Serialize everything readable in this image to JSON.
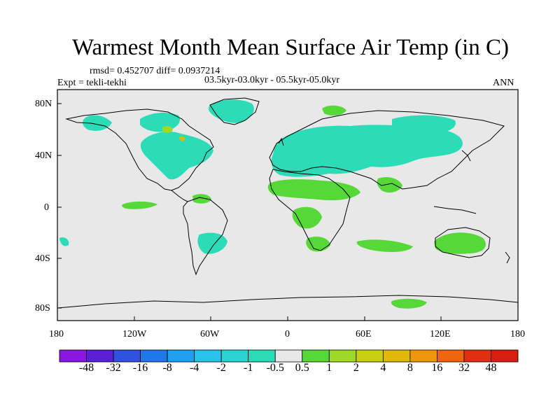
{
  "title": "Warmest Month Mean Surface Air Temp (in C)",
  "stats": "rmsd= 0.452707 diff= 0.0937214",
  "experiment": "Expt = tekli-tekhi",
  "period": "03.5kyr-03.0kyr - 05.5kyr-05.0kyr",
  "season": "ANN",
  "axes": {
    "lat_labels": [
      "80N",
      "40N",
      "0",
      "40S",
      "80S"
    ],
    "lon_labels": [
      "180",
      "120W",
      "60W",
      "0",
      "60E",
      "120E",
      "180"
    ]
  },
  "colorbar": {
    "labels": [
      "-48",
      "-32",
      "-16",
      "-8",
      "-4",
      "-2",
      "-1",
      "-0.5",
      "0.5",
      "1",
      "2",
      "4",
      "8",
      "16",
      "32",
      "48"
    ],
    "colors": [
      "#8a17e0",
      "#5a20d8",
      "#2f52e0",
      "#1e78e8",
      "#1fa0f0",
      "#28c2ea",
      "#29d4d2",
      "#2cdcb8",
      "#e8e8e8",
      "#55d838",
      "#a0d82a",
      "#c8d012",
      "#e0b80a",
      "#f0960a",
      "#f06410",
      "#e03010",
      "#d81e10"
    ]
  },
  "colors": {
    "background": "#e8e8e8",
    "cooling_small": "#2cdcb8",
    "cooling_medium": "#29d4d2",
    "warming_small": "#55d838",
    "warming_medium": "#a0d82a",
    "warming_large": "#e0b80a"
  }
}
